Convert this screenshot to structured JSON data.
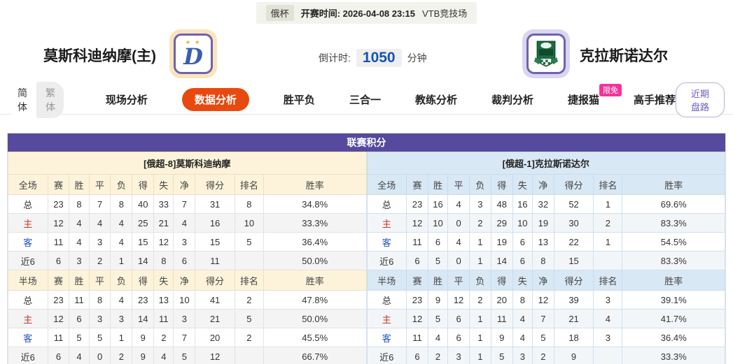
{
  "topbar": {
    "league": "俄杯",
    "kickoff_label": "开赛时间:",
    "kickoff_time": "2026-04-08 23:15",
    "venue": "VTB竞技场"
  },
  "match": {
    "home_name": "莫斯科迪纳摩(主)",
    "away_name": "克拉斯诺达尔",
    "countdown_label": "倒计时:",
    "countdown_value": "1050",
    "countdown_unit": "分钟",
    "home_stars": "★ ★",
    "home_logo_letter": "D"
  },
  "icons": {
    "home_logo": "dynamo-moscow-crest",
    "away_logo": "krasnodar-crest"
  },
  "nav": {
    "lang_simplified": "简体",
    "lang_traditional": "繁体",
    "tabs": {
      "live": "现场分析",
      "data": "数据分析",
      "wdl": "胜平负",
      "three_in_one": "三合一",
      "coach": "教练分析",
      "referee": "裁判分析",
      "jiebao_cat": "捷报猫",
      "jiebao_badge": "限免",
      "expert": "高手推荐"
    },
    "recent_button": "近期盘路"
  },
  "league_table": {
    "title": "联赛积分",
    "columns_full": [
      [
        "全场",
        "赛",
        "胜",
        "平",
        "负",
        "得",
        "失",
        "净",
        "得分",
        "排名",
        "胜率"
      ]
    ],
    "columns_half": [
      [
        "半场",
        "赛",
        "胜",
        "平",
        "负",
        "得",
        "失",
        "净",
        "得分",
        "排名",
        "胜率"
      ]
    ],
    "home": {
      "header": "[俄超-8]莫斯科迪纳摩",
      "full": [
        [
          "总",
          "23",
          "8",
          "7",
          "8",
          "40",
          "33",
          "7",
          "31",
          "8",
          "34.8%"
        ],
        [
          "主",
          "12",
          "4",
          "4",
          "4",
          "25",
          "21",
          "4",
          "16",
          "10",
          "33.3%"
        ],
        [
          "客",
          "11",
          "4",
          "3",
          "4",
          "15",
          "12",
          "3",
          "15",
          "5",
          "36.4%"
        ],
        [
          "近6",
          "6",
          "3",
          "2",
          "1",
          "14",
          "8",
          "6",
          "11",
          "",
          "50.0%"
        ]
      ],
      "half": [
        [
          "总",
          "23",
          "11",
          "8",
          "4",
          "23",
          "13",
          "10",
          "41",
          "2",
          "47.8%"
        ],
        [
          "主",
          "12",
          "6",
          "3",
          "3",
          "14",
          "11",
          "3",
          "21",
          "5",
          "50.0%"
        ],
        [
          "客",
          "11",
          "5",
          "5",
          "1",
          "9",
          "2",
          "7",
          "20",
          "2",
          "45.5%"
        ],
        [
          "近6",
          "6",
          "4",
          "0",
          "2",
          "9",
          "4",
          "5",
          "12",
          "",
          "66.7%"
        ]
      ]
    },
    "away": {
      "header": "[俄超-1]克拉斯诺达尔",
      "full": [
        [
          "总",
          "23",
          "16",
          "4",
          "3",
          "48",
          "16",
          "32",
          "52",
          "1",
          "69.6%"
        ],
        [
          "主",
          "12",
          "10",
          "0",
          "2",
          "29",
          "10",
          "19",
          "30",
          "2",
          "83.3%"
        ],
        [
          "客",
          "11",
          "6",
          "4",
          "1",
          "19",
          "6",
          "13",
          "22",
          "1",
          "54.5%"
        ],
        [
          "近6",
          "6",
          "5",
          "0",
          "1",
          "14",
          "6",
          "8",
          "15",
          "",
          "83.3%"
        ]
      ],
      "half": [
        [
          "总",
          "23",
          "9",
          "12",
          "2",
          "20",
          "8",
          "12",
          "39",
          "3",
          "39.1%"
        ],
        [
          "主",
          "12",
          "5",
          "6",
          "1",
          "11",
          "4",
          "7",
          "21",
          "4",
          "41.7%"
        ],
        [
          "客",
          "11",
          "4",
          "6",
          "1",
          "9",
          "4",
          "5",
          "18",
          "3",
          "36.4%"
        ],
        [
          "近6",
          "6",
          "2",
          "3",
          "1",
          "5",
          "3",
          "2",
          "9",
          "",
          "33.3%"
        ]
      ]
    }
  },
  "colors": {
    "accent_purple": "#564a9e",
    "active_tab_orange": "#e8490f",
    "badge_pink": "#f5329b",
    "home_section_bg": "#fcf3da",
    "away_section_bg": "#d9e8f5",
    "countdown_blue": "#1355b4",
    "home_label_red": "#cf3028",
    "away_label_blue": "#2353c5"
  }
}
